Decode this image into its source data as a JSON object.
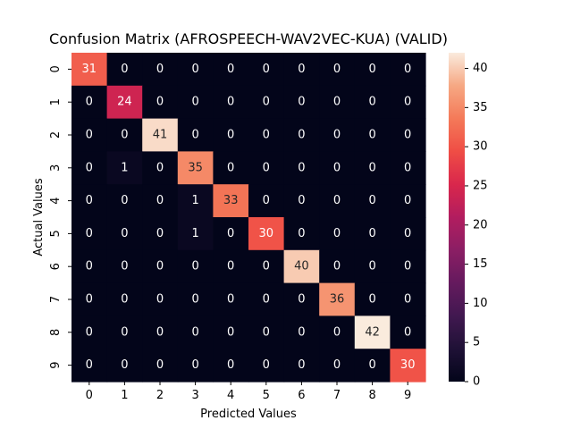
{
  "chart_data": {
    "type": "heatmap",
    "title": "Confusion Matrix (AFROSPEECH-WAV2VEC-KUA) (VALID)",
    "xlabel": "Predicted Values",
    "ylabel": "Actual Values",
    "x_categories": [
      "0",
      "1",
      "2",
      "3",
      "4",
      "5",
      "6",
      "7",
      "8",
      "9"
    ],
    "y_categories": [
      "0",
      "1",
      "2",
      "3",
      "4",
      "5",
      "6",
      "7",
      "8",
      "9"
    ],
    "matrix": [
      [
        31,
        0,
        0,
        0,
        0,
        0,
        0,
        0,
        0,
        0
      ],
      [
        0,
        24,
        0,
        0,
        0,
        0,
        0,
        0,
        0,
        0
      ],
      [
        0,
        0,
        41,
        0,
        0,
        0,
        0,
        0,
        0,
        0
      ],
      [
        0,
        1,
        0,
        35,
        0,
        0,
        0,
        0,
        0,
        0
      ],
      [
        0,
        0,
        0,
        1,
        33,
        0,
        0,
        0,
        0,
        0
      ],
      [
        0,
        0,
        0,
        1,
        0,
        30,
        0,
        0,
        0,
        0
      ],
      [
        0,
        0,
        0,
        0,
        0,
        0,
        40,
        0,
        0,
        0
      ],
      [
        0,
        0,
        0,
        0,
        0,
        0,
        0,
        36,
        0,
        0
      ],
      [
        0,
        0,
        0,
        0,
        0,
        0,
        0,
        0,
        42,
        0
      ],
      [
        0,
        0,
        0,
        0,
        0,
        0,
        0,
        0,
        0,
        30
      ]
    ],
    "colorbar": {
      "min": 0,
      "max": 42,
      "ticks": [
        "0",
        "5",
        "10",
        "15",
        "20",
        "25",
        "30",
        "35",
        "40"
      ]
    },
    "colormap": "rocket",
    "grid": false
  }
}
